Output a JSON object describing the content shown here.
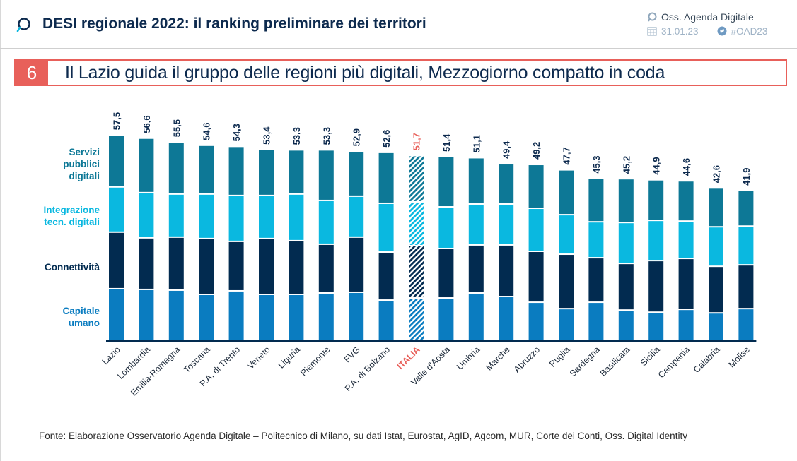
{
  "header": {
    "title": "DESI regionale 2022: il ranking preliminare dei territori",
    "org": "Oss. Agenda Digitale",
    "date": "31.01.23",
    "hashtag": "#OAD23"
  },
  "banner": {
    "number": "6",
    "text": "Il Lazio guida il gruppo delle regioni più digitali, Mezzogiorno compatto in coda"
  },
  "footer": {
    "source": "Fonte: Elaborazione Osservatorio Agenda Digitale – Politecnico di Milano, su dati Istat, Eurostat, AgID, Agcom, MUR, Corte dei Conti, Oss. Digital Identity"
  },
  "colors": {
    "servizi": "#0d7896",
    "integrazione": "#0ab8e0",
    "connettivita": "#022b50",
    "capitale": "#0a7cc0",
    "highlight": "#e8605a",
    "text_dark": "#0d2a4e"
  },
  "chart_data": {
    "type": "bar",
    "stacked": true,
    "title": "DESI regionale 2022: il ranking preliminare dei territori",
    "xlabel": "",
    "ylabel": "",
    "ylim": [
      0,
      60
    ],
    "grid": false,
    "legend_position": "left",
    "highlight_category": "ITALIA",
    "categories": [
      "Lazio",
      "Lombardia",
      "Emilia-Romagna",
      "Toscana",
      "P.A. di Trento",
      "Veneto",
      "Liguria",
      "Piemonte",
      "FVG",
      "P.A. di Bolzano",
      "ITALIA",
      "Valle d'Aosta",
      "Umbria",
      "Marche",
      "Abruzzo",
      "Puglia",
      "Sardegna",
      "Basilicata",
      "Sicilia",
      "Campania",
      "Calabria",
      "Molise"
    ],
    "totals": [
      57.5,
      56.6,
      55.5,
      54.6,
      54.3,
      53.4,
      53.3,
      53.3,
      52.9,
      52.6,
      51.7,
      51.4,
      51.1,
      49.4,
      49.2,
      47.7,
      45.3,
      45.2,
      44.9,
      44.6,
      42.6,
      41.9
    ],
    "total_labels": [
      "57,5",
      "56,6",
      "55,5",
      "54,6",
      "54,3",
      "53,4",
      "53,3",
      "53,3",
      "52,9",
      "52,6",
      "51,7",
      "51,4",
      "51,1",
      "49,4",
      "49,2",
      "47,7",
      "45,3",
      "45,2",
      "44,9",
      "44,6",
      "42,6",
      "41,9"
    ],
    "series": [
      {
        "name": "Capitale umano",
        "legend": [
          "Capitale",
          "umano"
        ],
        "color_key": "capitale",
        "values": [
          14.3,
          14.1,
          13.9,
          12.7,
          13.7,
          12.7,
          12.7,
          13.1,
          13.3,
          11.1,
          11.7,
          11.7,
          13.1,
          12.1,
          10.5,
          8.7,
          10.5,
          8.3,
          7.7,
          8.5,
          7.5,
          8.7
        ]
      },
      {
        "name": "Connettività",
        "legend": [
          "Connettività"
        ],
        "color_key": "connettivita",
        "values": [
          15.9,
          14.5,
          14.9,
          15.7,
          13.9,
          15.7,
          15.1,
          13.7,
          15.5,
          13.5,
          14.7,
          13.9,
          13.5,
          14.5,
          14.3,
          15.3,
          12.5,
          13.1,
          14.5,
          14.3,
          13.1,
          12.3
        ]
      },
      {
        "name": "Integrazione tecn. digitali",
        "legend": [
          "Integrazione",
          "tecn. digitali"
        ],
        "color_key": "integrazione",
        "values": [
          12.7,
          12.7,
          12.1,
          12.5,
          12.9,
          12.1,
          13.1,
          12.3,
          11.5,
          13.7,
          12.3,
          11.7,
          11.5,
          11.5,
          12.1,
          11.1,
          10.1,
          11.5,
          11.3,
          10.5,
          11.1,
          10.9
        ]
      },
      {
        "name": "Servizi pubblici digitali",
        "legend": [
          "Servizi",
          "pubblici",
          "digitali"
        ],
        "color_key": "servizi",
        "values": [
          14.6,
          15.3,
          14.6,
          13.7,
          13.8,
          12.9,
          12.4,
          14.2,
          12.6,
          14.3,
          13.0,
          14.1,
          13.0,
          11.3,
          12.3,
          12.6,
          12.2,
          12.3,
          11.4,
          11.3,
          10.9,
          10.0
        ]
      }
    ]
  }
}
